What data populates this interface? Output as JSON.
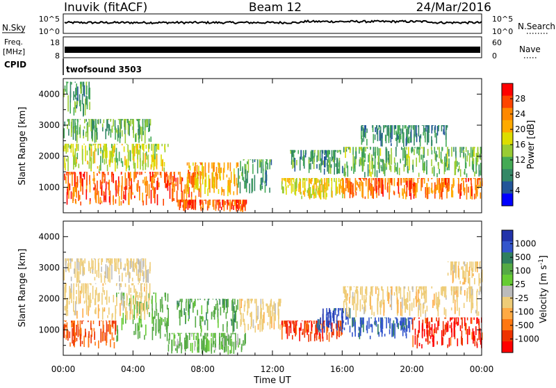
{
  "header": {
    "site": "Inuvik (fitACF)",
    "beam": "Beam 12",
    "date": "24/Mar/2016"
  },
  "noise_panel": {
    "left_label": "N.Sky",
    "right_label": "N.Search",
    "left_ticks": [
      "10^5",
      "10^0"
    ],
    "right_ticks": [
      "10^5",
      "10^0"
    ]
  },
  "freq_panel": {
    "left_label_1": "Freq.",
    "left_label_2": "[MHz]",
    "right_label": "Nave",
    "left_ticks": [
      "18",
      "8"
    ],
    "right_ticks": [
      "60",
      "0"
    ]
  },
  "cpid": {
    "label": "CPID",
    "value": "twofsound 3503"
  },
  "chart_data": [
    {
      "type": "heatmap",
      "name": "power",
      "ylabel": "Slant Range [km]",
      "y_ticks": [
        "1000",
        "2000",
        "3000",
        "4000"
      ],
      "ylim": [
        180,
        4500
      ],
      "colorbar_label": "Power [dB]",
      "colorbar_ticks": [
        "28",
        "24",
        "20",
        "16",
        "12",
        "8",
        "4"
      ],
      "colorbar_colors": [
        "#ff0000",
        "#ff4400",
        "#ff8800",
        "#ffaa00",
        "#dddd00",
        "#99cc33",
        "#44aa55",
        "#338866",
        "#225599",
        "#0000ff"
      ],
      "bands": [
        {
          "start": 0.0,
          "end": 8.0,
          "rmin": 400,
          "rmax": 1500,
          "db": 27
        },
        {
          "start": 0.0,
          "end": 6.0,
          "rmin": 1500,
          "rmax": 2400,
          "db": 16
        },
        {
          "start": 0.0,
          "end": 5.0,
          "rmin": 2400,
          "rmax": 3200,
          "db": 11
        },
        {
          "start": 0.0,
          "end": 1.5,
          "rmin": 3200,
          "rmax": 4400,
          "db": 10
        },
        {
          "start": 6.5,
          "end": 10.5,
          "rmin": 200,
          "rmax": 600,
          "db": 28
        },
        {
          "start": 7.0,
          "end": 10.0,
          "rmin": 700,
          "rmax": 1800,
          "db": 22
        },
        {
          "start": 10.0,
          "end": 12.0,
          "rmin": 800,
          "rmax": 1900,
          "db": 10
        },
        {
          "start": 12.5,
          "end": 16.0,
          "rmin": 600,
          "rmax": 1300,
          "db": 18
        },
        {
          "start": 13.0,
          "end": 16.0,
          "rmin": 1400,
          "rmax": 2200,
          "db": 9
        },
        {
          "start": 16.0,
          "end": 24.0,
          "rmin": 600,
          "rmax": 1300,
          "db": 26
        },
        {
          "start": 16.0,
          "end": 24.0,
          "rmin": 1300,
          "rmax": 2300,
          "db": 12
        },
        {
          "start": 17.0,
          "end": 22.0,
          "rmin": 2300,
          "rmax": 3000,
          "db": 7
        }
      ]
    },
    {
      "type": "heatmap",
      "name": "velocity",
      "ylabel": "Slant Range [km]",
      "y_ticks": [
        "1000",
        "2000",
        "3000",
        "4000"
      ],
      "ylim": [
        180,
        4500
      ],
      "colorbar_label": "Velocity [m s^-1]",
      "colorbar_ticks": [
        "1000",
        "500",
        "100",
        "25",
        "-25",
        "-100",
        "-500",
        "-1000"
      ],
      "colorbar_colors": [
        "#2233aa",
        "#3355cc",
        "#2f7f5f",
        "#55aa44",
        "#66cc33",
        "#bbbbbb",
        "#eecc77",
        "#ffaa44",
        "#ff7711",
        "#ee3300",
        "#ff0000"
      ],
      "x_ticks": [
        "00:00",
        "04:00",
        "08:00",
        "12:00",
        "16:00",
        "20:00",
        "00:00"
      ],
      "x_tick_hours": [
        0,
        4,
        8,
        12,
        16,
        20,
        24
      ],
      "xlabel": "Time UT",
      "bands": [
        {
          "start": 0.0,
          "end": 3.0,
          "rmin": 400,
          "rmax": 1300,
          "vel": -300
        },
        {
          "start": 3.0,
          "end": 6.0,
          "rmin": 600,
          "rmax": 2200,
          "vel": 150
        },
        {
          "start": 0.0,
          "end": 5.0,
          "rmin": 1300,
          "rmax": 2500,
          "vel": 0
        },
        {
          "start": 0.0,
          "end": 5.0,
          "rmin": 2500,
          "rmax": 3300,
          "vel": 10
        },
        {
          "start": 6.0,
          "end": 10.5,
          "rmin": 200,
          "rmax": 900,
          "vel": 120
        },
        {
          "start": 6.5,
          "end": 10.0,
          "rmin": 900,
          "rmax": 2000,
          "vel": 200
        },
        {
          "start": 10.0,
          "end": 12.5,
          "rmin": 900,
          "rmax": 2000,
          "vel": 0
        },
        {
          "start": 12.5,
          "end": 16.0,
          "rmin": 600,
          "rmax": 1300,
          "vel": -400
        },
        {
          "start": 14.5,
          "end": 16.5,
          "rmin": 900,
          "rmax": 1700,
          "vel": 800
        },
        {
          "start": 16.5,
          "end": 20.0,
          "rmin": 700,
          "rmax": 1400,
          "vel": 600
        },
        {
          "start": 20.0,
          "end": 24.0,
          "rmin": 400,
          "rmax": 1400,
          "vel": -500
        },
        {
          "start": 16.0,
          "end": 24.0,
          "rmin": 1400,
          "rmax": 2400,
          "vel": 0
        },
        {
          "start": 22.0,
          "end": 24.0,
          "rmin": 2400,
          "rmax": 3200,
          "vel": 0
        }
      ]
    }
  ]
}
